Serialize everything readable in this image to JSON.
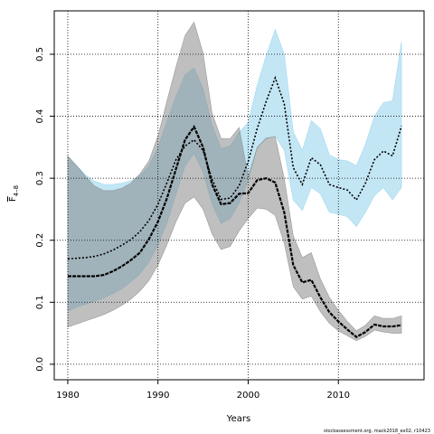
{
  "chart_data": {
    "type": "line",
    "xlabel": "Years",
    "ylabel_main": "F",
    "ylabel_sub": "4–8",
    "xlim": [
      1978.5,
      2019.5
    ],
    "ylim": [
      -0.025,
      0.57
    ],
    "xticks": [
      1980,
      1990,
      2000,
      2010
    ],
    "yticks": [
      0.0,
      0.1,
      0.2,
      0.3,
      0.4,
      0.5
    ],
    "ytick_labels": [
      "0.0",
      "0.1",
      "0.2",
      "0.3",
      "0.4",
      "0.5"
    ],
    "grid": true,
    "footer": "stockassessment.org, mack2018_ex02, r10423",
    "colors": {
      "blue_band": "#87CEEB",
      "grey_band": "#808080",
      "grid": "#000000"
    },
    "years": [
      1980,
      1981,
      1982,
      1983,
      1984,
      1985,
      1986,
      1987,
      1988,
      1989,
      1990,
      1991,
      1992,
      1993,
      1994,
      1995,
      1996,
      1997,
      1998,
      1999,
      2000,
      2001,
      2002,
      2003,
      2004,
      2005,
      2006,
      2007,
      2008,
      2009,
      2010,
      2011,
      2012,
      2013,
      2014,
      2015,
      2016,
      2017
    ],
    "series": [
      {
        "style": "dotted",
        "values": [
          0.17,
          0.171,
          0.172,
          0.174,
          0.178,
          0.184,
          0.192,
          0.201,
          0.214,
          0.232,
          0.258,
          0.293,
          0.33,
          0.352,
          0.362,
          0.345,
          0.298,
          0.266,
          0.268,
          0.288,
          0.327,
          0.38,
          0.424,
          0.462,
          0.42,
          0.317,
          0.29,
          0.333,
          0.322,
          0.29,
          0.285,
          0.281,
          0.265,
          0.292,
          0.33,
          0.344,
          0.336,
          0.384
        ],
        "lower": [
          0.086,
          0.092,
          0.097,
          0.102,
          0.107,
          0.114,
          0.122,
          0.133,
          0.146,
          0.165,
          0.192,
          0.228,
          0.274,
          0.32,
          0.34,
          0.31,
          0.258,
          0.227,
          0.235,
          0.26,
          0.296,
          0.349,
          0.364,
          0.368,
          0.345,
          0.265,
          0.248,
          0.285,
          0.275,
          0.245,
          0.242,
          0.238,
          0.222,
          0.245,
          0.272,
          0.285,
          0.265,
          0.285
        ],
        "upper": [
          0.335,
          0.32,
          0.305,
          0.295,
          0.29,
          0.29,
          0.292,
          0.296,
          0.304,
          0.32,
          0.35,
          0.392,
          0.432,
          0.467,
          0.478,
          0.445,
          0.385,
          0.348,
          0.352,
          0.374,
          0.39,
          0.45,
          0.498,
          0.54,
          0.5,
          0.375,
          0.345,
          0.393,
          0.38,
          0.338,
          0.33,
          0.328,
          0.32,
          0.355,
          0.4,
          0.422,
          0.425,
          0.52
        ]
      },
      {
        "style": "dashed",
        "values": [
          0.142,
          0.142,
          0.142,
          0.142,
          0.144,
          0.15,
          0.158,
          0.168,
          0.18,
          0.202,
          0.23,
          0.268,
          0.315,
          0.362,
          0.383,
          0.35,
          0.29,
          0.258,
          0.26,
          0.275,
          0.276,
          0.297,
          0.3,
          0.293,
          0.245,
          0.16,
          0.132,
          0.136,
          0.108,
          0.084,
          0.069,
          0.056,
          0.044,
          0.052,
          0.064,
          0.061,
          0.061,
          0.063
        ],
        "lower": [
          0.06,
          0.065,
          0.07,
          0.075,
          0.08,
          0.087,
          0.095,
          0.105,
          0.118,
          0.135,
          0.16,
          0.193,
          0.23,
          0.26,
          0.27,
          0.25,
          0.21,
          0.185,
          0.19,
          0.215,
          0.235,
          0.252,
          0.25,
          0.24,
          0.195,
          0.125,
          0.105,
          0.11,
          0.085,
          0.066,
          0.054,
          0.046,
          0.038,
          0.045,
          0.055,
          0.052,
          0.05,
          0.05
        ],
        "upper": [
          0.336,
          0.32,
          0.302,
          0.287,
          0.28,
          0.28,
          0.284,
          0.292,
          0.307,
          0.328,
          0.368,
          0.425,
          0.48,
          0.53,
          0.552,
          0.502,
          0.405,
          0.364,
          0.364,
          0.382,
          0.303,
          0.35,
          0.365,
          0.367,
          0.3,
          0.207,
          0.172,
          0.18,
          0.138,
          0.108,
          0.087,
          0.069,
          0.054,
          0.063,
          0.078,
          0.074,
          0.074,
          0.078
        ]
      }
    ]
  }
}
